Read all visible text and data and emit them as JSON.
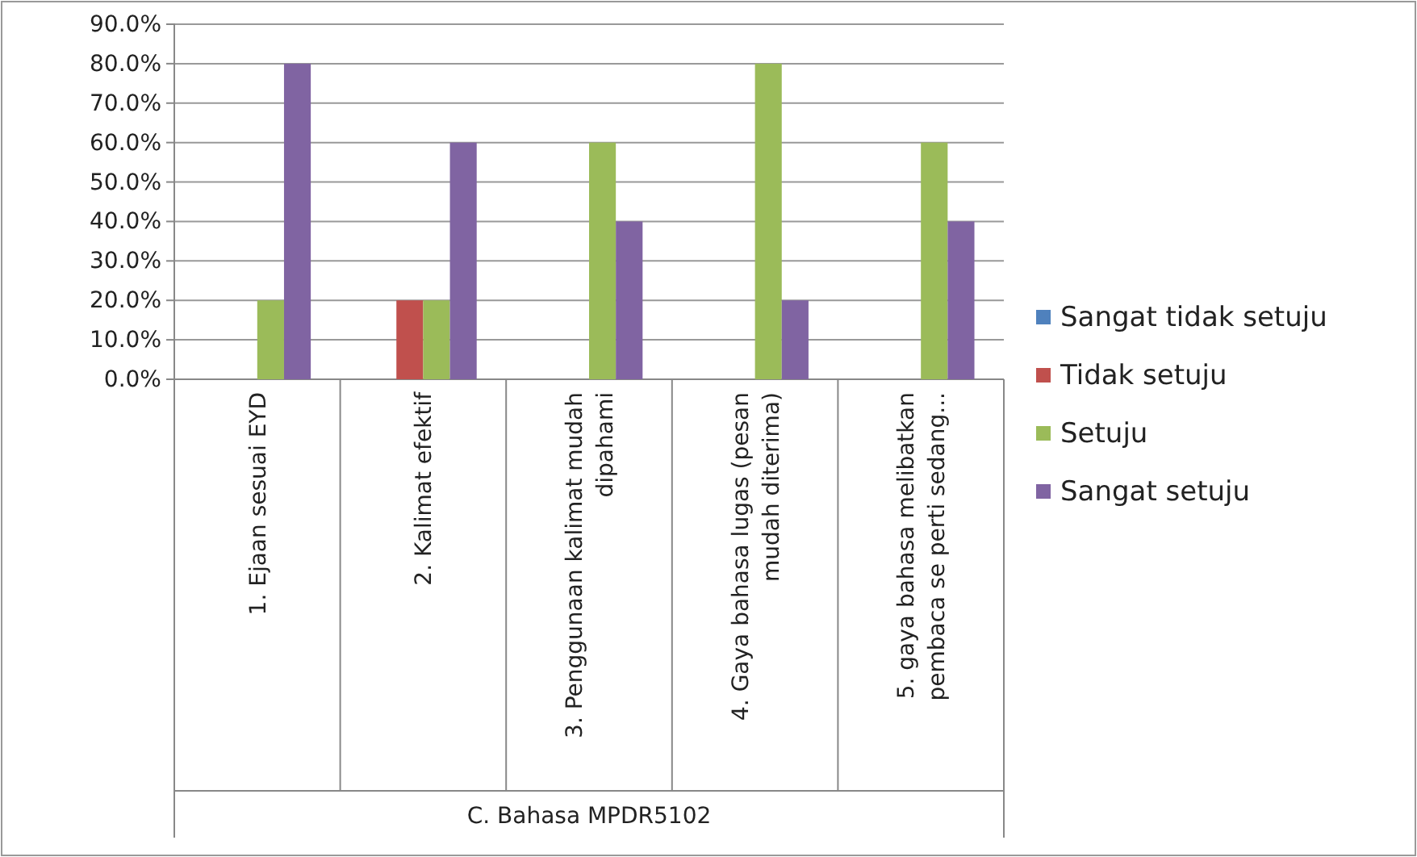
{
  "chart_data": {
    "type": "bar",
    "categories": [
      "1. Ejaan sesuai EYD",
      "2. Kalimat efektif",
      "3. Penggunaan kalimat mudah dipahami",
      "4. Gaya bahasa lugas (pesan mudah diterima)",
      "5. gaya bahasa melibatkan pembaca se perti sedang..."
    ],
    "xlabel": "C. Bahasa MPDR5102",
    "series": [
      {
        "name": "Sangat tidak setuju",
        "color": "#4f81bd",
        "values": [
          0,
          0,
          0,
          0,
          0
        ]
      },
      {
        "name": "Tidak setuju",
        "color": "#c0504d",
        "values": [
          0,
          20,
          0,
          0,
          0
        ]
      },
      {
        "name": "Setuju",
        "color": "#9bbb59",
        "values": [
          20,
          20,
          60,
          80,
          60
        ]
      },
      {
        "name": "Sangat setuju",
        "color": "#8064a2",
        "values": [
          80,
          60,
          40,
          20,
          40
        ]
      }
    ],
    "ylim": [
      0,
      90
    ],
    "yticks": [
      {
        "value": 0,
        "label": "0.0%"
      },
      {
        "value": 10,
        "label": "10.0%"
      },
      {
        "value": 20,
        "label": "20.0%"
      },
      {
        "value": 30,
        "label": "30.0%"
      },
      {
        "value": 40,
        "label": "40.0%"
      },
      {
        "value": 50,
        "label": "50.0%"
      },
      {
        "value": 60,
        "label": "60.0%"
      },
      {
        "value": 70,
        "label": "70.0%"
      },
      {
        "value": 80,
        "label": "80.0%"
      },
      {
        "value": 90,
        "label": "90.0%"
      }
    ],
    "grid": "y",
    "legend": "right"
  }
}
